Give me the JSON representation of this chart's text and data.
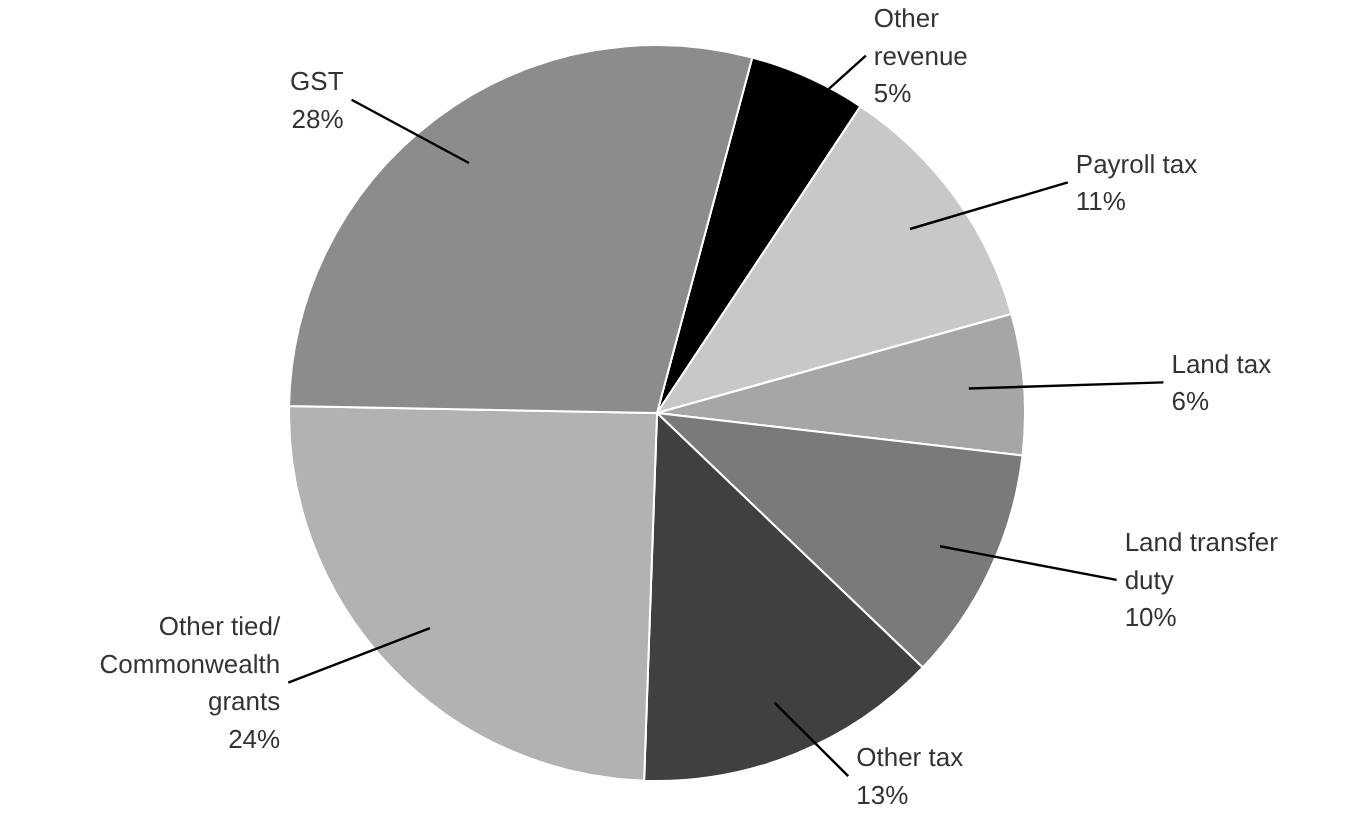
{
  "chart_data": {
    "type": "pie",
    "categories": [
      "Other\nrevenue",
      "Payroll tax",
      "Land tax",
      "Land transfer\nduty",
      "Other tax",
      "Other tied/\nCommonwealth\ngrants",
      "GST"
    ],
    "values": [
      5,
      11,
      6,
      10,
      13,
      24,
      28
    ],
    "colors": [
      "#000000",
      "#c8c8c8",
      "#a6a6a6",
      "#7a7a7a",
      "#404040",
      "#b2b2b2",
      "#8c8c8c"
    ],
    "value_labels": [
      "5%",
      "11%",
      "6%",
      "10%",
      "13%",
      "24%",
      "28%"
    ]
  }
}
